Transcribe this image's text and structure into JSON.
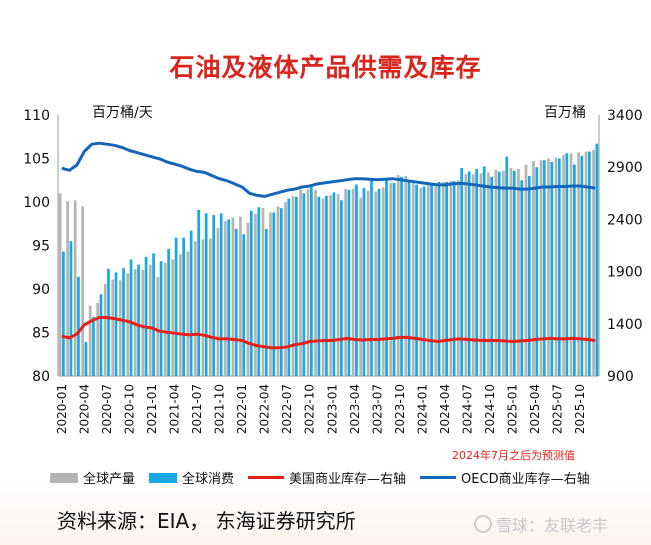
{
  "page": {
    "source": "资料来源：EIA， 东海证券研究所",
    "watermark": "雪球：友联老丰",
    "forecast_note": "2024年7月之后为预测值"
  },
  "colors": {
    "production": "#b4b4b4",
    "consumption": "#17a9e3",
    "us_inventory": "#e8201a",
    "oecd_inventory": "#1565b8",
    "title": "#d7261e"
  },
  "chart_data": {
    "type": "bar",
    "title": "石油及液体产品供需及库存",
    "ylabel_left": "百万桶/天",
    "ylabel_right": "百万桶",
    "ylim_left": [
      80,
      110
    ],
    "ylim_right": [
      900,
      3400
    ],
    "yticks_left": [
      80,
      85,
      90,
      95,
      100,
      105,
      110
    ],
    "yticks_right": [
      900,
      1400,
      1900,
      2400,
      2900,
      3400
    ],
    "x": [
      "2020-01",
      "2020-02",
      "2020-03",
      "2020-04",
      "2020-05",
      "2020-06",
      "2020-07",
      "2020-08",
      "2020-09",
      "2020-10",
      "2020-11",
      "2020-12",
      "2021-01",
      "2021-02",
      "2021-03",
      "2021-04",
      "2021-05",
      "2021-06",
      "2021-07",
      "2021-08",
      "2021-09",
      "2021-10",
      "2021-11",
      "2021-12",
      "2022-01",
      "2022-02",
      "2022-03",
      "2022-04",
      "2022-05",
      "2022-06",
      "2022-07",
      "2022-08",
      "2022-09",
      "2022-10",
      "2022-11",
      "2022-12",
      "2023-01",
      "2023-02",
      "2023-03",
      "2023-04",
      "2023-05",
      "2023-06",
      "2023-07",
      "2023-08",
      "2023-09",
      "2023-10",
      "2023-11",
      "2023-12",
      "2024-01",
      "2024-02",
      "2024-03",
      "2024-04",
      "2024-05",
      "2024-06",
      "2024-07",
      "2024-08",
      "2024-09",
      "2024-10",
      "2024-11",
      "2024-12",
      "2025-01",
      "2025-02",
      "2025-03",
      "2025-04",
      "2025-05",
      "2025-06",
      "2025-07",
      "2025-08",
      "2025-09",
      "2025-10",
      "2025-11",
      "2025-12"
    ],
    "xticks": [
      "2020-01",
      "2020-04",
      "2020-07",
      "2020-10",
      "2021-01",
      "2021-04",
      "2021-07",
      "2021-10",
      "2022-01",
      "2022-04",
      "2022-07",
      "2022-10",
      "2023-01",
      "2023-04",
      "2023-07",
      "2023-10",
      "2024-01",
      "2024-04",
      "2024-07",
      "2024-10",
      "2025-01",
      "2025-04",
      "2025-07",
      "2025-10"
    ],
    "series": [
      {
        "name": "全球产量",
        "axis": "left",
        "kind": "bar",
        "values": [
          101.0,
          100.1,
          100.2,
          99.5,
          88.1,
          88.4,
          90.6,
          91.1,
          91.0,
          91.8,
          92.3,
          92.2,
          92.8,
          91.4,
          93.0,
          93.4,
          94.0,
          94.3,
          95.5,
          95.7,
          95.8,
          97.0,
          97.8,
          98.2,
          98.3,
          97.6,
          98.6,
          99.3,
          98.8,
          99.5,
          100.0,
          100.7,
          101.4,
          101.5,
          101.4,
          100.4,
          100.8,
          100.9,
          101.5,
          101.5,
          100.5,
          101.3,
          101.2,
          101.7,
          102.2,
          103.1,
          103.0,
          102.4,
          101.6,
          101.9,
          102.1,
          102.3,
          102.4,
          102.5,
          103.2,
          103.2,
          103.3,
          103.4,
          103.7,
          103.6,
          103.9,
          103.8,
          104.3,
          104.7,
          104.8,
          105.0,
          105.1,
          105.4,
          105.6,
          105.7,
          105.8,
          106.0
        ]
      },
      {
        "name": "全球消费",
        "axis": "left",
        "kind": "bar",
        "values": [
          94.3,
          95.5,
          91.4,
          83.9,
          86.8,
          89.4,
          92.3,
          91.9,
          92.4,
          93.4,
          92.8,
          93.7,
          94.1,
          93.2,
          94.6,
          95.9,
          95.9,
          96.7,
          99.1,
          98.7,
          98.5,
          98.7,
          98.0,
          96.9,
          96.3,
          99.0,
          99.4,
          96.9,
          98.8,
          99.3,
          100.4,
          100.6,
          101.0,
          101.7,
          100.6,
          100.7,
          101.1,
          100.2,
          101.4,
          102.0,
          101.6,
          102.6,
          101.5,
          102.6,
          102.2,
          102.9,
          102.3,
          102.0,
          101.8,
          102.1,
          102.3,
          102.3,
          102.4,
          103.9,
          103.5,
          103.8,
          104.1,
          102.9,
          103.5,
          105.2,
          103.6,
          102.5,
          103.0,
          104.0,
          104.8,
          104.6,
          105.0,
          105.6,
          104.3,
          105.3,
          105.8,
          106.7
        ]
      },
      {
        "name": "美国商业库存—右轴",
        "axis": "right",
        "kind": "line",
        "values": [
          1280,
          1265,
          1300,
          1390,
          1430,
          1460,
          1460,
          1450,
          1435,
          1420,
          1390,
          1370,
          1360,
          1330,
          1320,
          1310,
          1300,
          1295,
          1300,
          1290,
          1270,
          1255,
          1255,
          1250,
          1240,
          1210,
          1190,
          1180,
          1170,
          1170,
          1180,
          1200,
          1210,
          1230,
          1235,
          1240,
          1240,
          1250,
          1260,
          1250,
          1245,
          1250,
          1250,
          1255,
          1260,
          1270,
          1270,
          1260,
          1250,
          1240,
          1230,
          1240,
          1250,
          1255,
          1250,
          1245,
          1240,
          1240,
          1240,
          1235,
          1230,
          1235,
          1240,
          1250,
          1255,
          1260,
          1255,
          1255,
          1260,
          1255,
          1250,
          1240
        ]
      },
      {
        "name": "OECD商业库存—右轴",
        "axis": "right",
        "kind": "line",
        "values": [
          2890,
          2870,
          2920,
          3050,
          3120,
          3130,
          3120,
          3110,
          3090,
          3060,
          3040,
          3020,
          3000,
          2980,
          2950,
          2930,
          2910,
          2880,
          2860,
          2850,
          2820,
          2790,
          2770,
          2740,
          2710,
          2650,
          2630,
          2620,
          2640,
          2660,
          2680,
          2690,
          2710,
          2720,
          2740,
          2750,
          2760,
          2770,
          2780,
          2790,
          2790,
          2785,
          2780,
          2785,
          2790,
          2780,
          2770,
          2760,
          2750,
          2740,
          2730,
          2730,
          2740,
          2745,
          2740,
          2730,
          2720,
          2710,
          2705,
          2700,
          2700,
          2690,
          2690,
          2700,
          2710,
          2710,
          2715,
          2715,
          2720,
          2720,
          2710,
          2700
        ]
      }
    ]
  }
}
